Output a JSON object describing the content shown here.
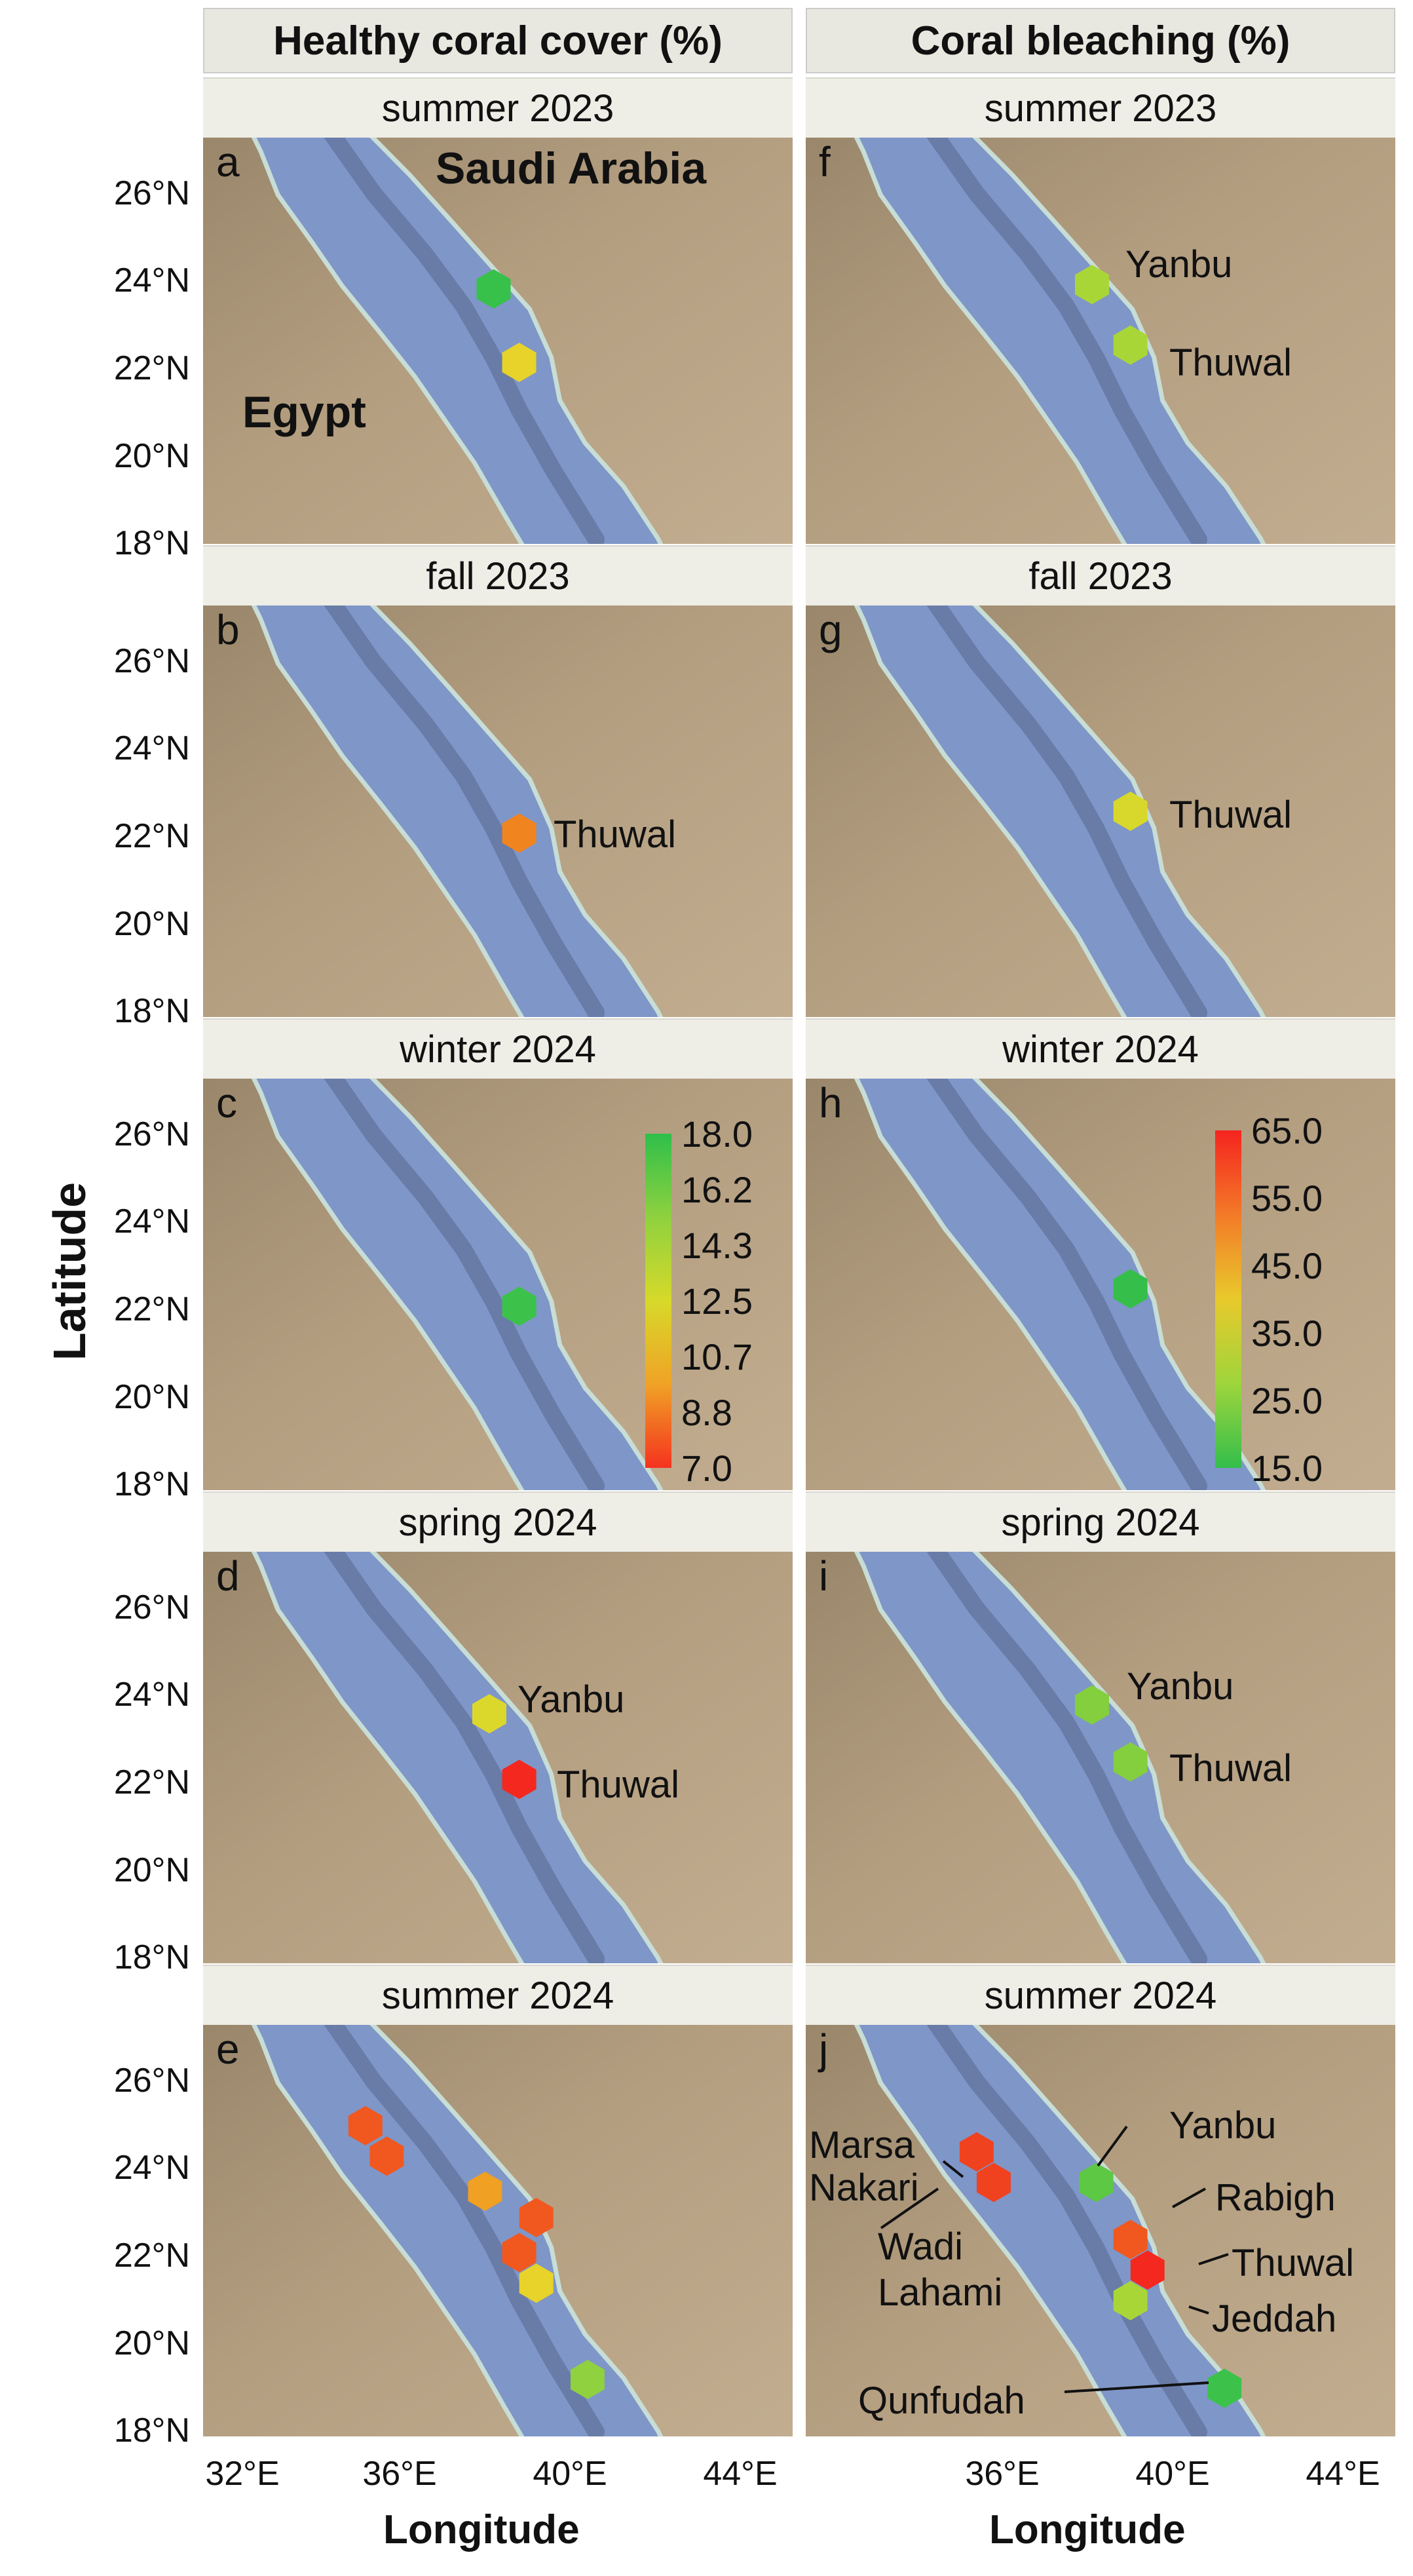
{
  "figure": {
    "left_header": "Healthy coral cover (%)",
    "right_header": "Coral bleaching (%)",
    "y_axis_title": "Latitude",
    "x_axis_title": "Longitude",
    "lat_ticks": [
      "26°N",
      "24°N",
      "22°N",
      "20°N",
      "18°N"
    ],
    "lon_ticks": [
      "32°E",
      "36°E",
      "40°E",
      "44°E"
    ],
    "country_labels": {
      "saudi": "Saudi Arabia",
      "egypt": "Egypt"
    }
  },
  "colorbars": {
    "cover": {
      "ticks": [
        "18.0",
        "16.2",
        "14.3",
        "12.5",
        "10.7",
        "8.8",
        "7.0"
      ],
      "colors": [
        "#2fbf4a",
        "#8fd13f",
        "#d7d92a",
        "#f0a226",
        "#f5321f"
      ]
    },
    "bleach": {
      "ticks": [
        "65.0",
        "55.0",
        "45.0",
        "35.0",
        "25.0",
        "15.0"
      ],
      "colors": [
        "#f5241f",
        "#f37a28",
        "#e8c92c",
        "#9fd53c",
        "#33be4c"
      ]
    }
  },
  "seasons": [
    "summer 2023",
    "fall 2023",
    "winter 2024",
    "spring 2024",
    "summer 2024"
  ],
  "panels": [
    {
      "id": "a",
      "side": "left",
      "season": "summer 2023",
      "sites": [
        {
          "lon": 38.0,
          "lat": 23.8,
          "color": "#37c04a"
        },
        {
          "lon": 38.6,
          "lat": 22.1,
          "color": "#e7d329"
        }
      ]
    },
    {
      "id": "b",
      "side": "left",
      "season": "fall 2023",
      "sites": [
        {
          "lon": 38.6,
          "lat": 22.1,
          "color": "#f0841f",
          "label": "Thuwal"
        }
      ]
    },
    {
      "id": "c",
      "side": "left",
      "season": "winter 2024",
      "sites": [
        {
          "lon": 38.6,
          "lat": 22.1,
          "color": "#3cc24a"
        }
      ]
    },
    {
      "id": "d",
      "side": "left",
      "season": "spring 2024",
      "sites": [
        {
          "lon": 37.9,
          "lat": 23.6,
          "color": "#dcd82b",
          "label": "Yanbu"
        },
        {
          "lon": 38.6,
          "lat": 22.1,
          "color": "#f4281e",
          "label": "Thuwal"
        }
      ]
    },
    {
      "id": "e",
      "side": "left",
      "season": "summer 2024",
      "sites": [
        {
          "lon": 35.0,
          "lat": 25.0,
          "color": "#f0581f"
        },
        {
          "lon": 35.5,
          "lat": 24.3,
          "color": "#f0581f"
        },
        {
          "lon": 37.8,
          "lat": 23.5,
          "color": "#f0a022"
        },
        {
          "lon": 39.0,
          "lat": 22.9,
          "color": "#f0581f"
        },
        {
          "lon": 38.6,
          "lat": 22.1,
          "color": "#f0581f"
        },
        {
          "lon": 39.0,
          "lat": 21.4,
          "color": "#e7d329"
        },
        {
          "lon": 40.2,
          "lat": 19.2,
          "color": "#8fd13f"
        }
      ]
    },
    {
      "id": "f",
      "side": "right",
      "season": "summer 2023",
      "sites": [
        {
          "lon": 37.9,
          "lat": 23.9,
          "color": "#a9d637",
          "label": "Yanbu"
        },
        {
          "lon": 38.8,
          "lat": 22.5,
          "color": "#a9d637",
          "label": "Thuwal"
        }
      ]
    },
    {
      "id": "g",
      "side": "right",
      "season": "fall 2023",
      "sites": [
        {
          "lon": 38.8,
          "lat": 22.6,
          "color": "#d8d82c",
          "label": "Thuwal"
        }
      ]
    },
    {
      "id": "h",
      "side": "right",
      "season": "winter 2024",
      "sites": [
        {
          "lon": 38.8,
          "lat": 22.5,
          "color": "#35bf4a"
        }
      ]
    },
    {
      "id": "i",
      "side": "right",
      "season": "spring 2024",
      "sites": [
        {
          "lon": 37.9,
          "lat": 23.8,
          "color": "#83cf3e",
          "label": "Yanbu"
        },
        {
          "lon": 38.8,
          "lat": 22.5,
          "color": "#83cf3e",
          "label": "Thuwal"
        }
      ]
    },
    {
      "id": "j",
      "side": "right",
      "season": "summer 2024",
      "sites": [
        {
          "lon": 35.2,
          "lat": 24.4,
          "color": "#f0421f"
        },
        {
          "lon": 35.6,
          "lat": 23.7,
          "color": "#f0421f"
        },
        {
          "lon": 38.0,
          "lat": 23.7,
          "color": "#5dc844"
        },
        {
          "lon": 38.8,
          "lat": 22.4,
          "color": "#f0581f"
        },
        {
          "lon": 39.2,
          "lat": 21.7,
          "color": "#f4281e"
        },
        {
          "lon": 38.8,
          "lat": 21.0,
          "color": "#a9d637"
        },
        {
          "lon": 41.0,
          "lat": 19.0,
          "color": "#3cc24a"
        }
      ],
      "labels": [
        "Marsa",
        "Nakari",
        "Wadi",
        "Lahami",
        "Yanbu",
        "Rabigh",
        "Thuwal",
        "Jeddah",
        "Qunfudah"
      ]
    }
  ]
}
